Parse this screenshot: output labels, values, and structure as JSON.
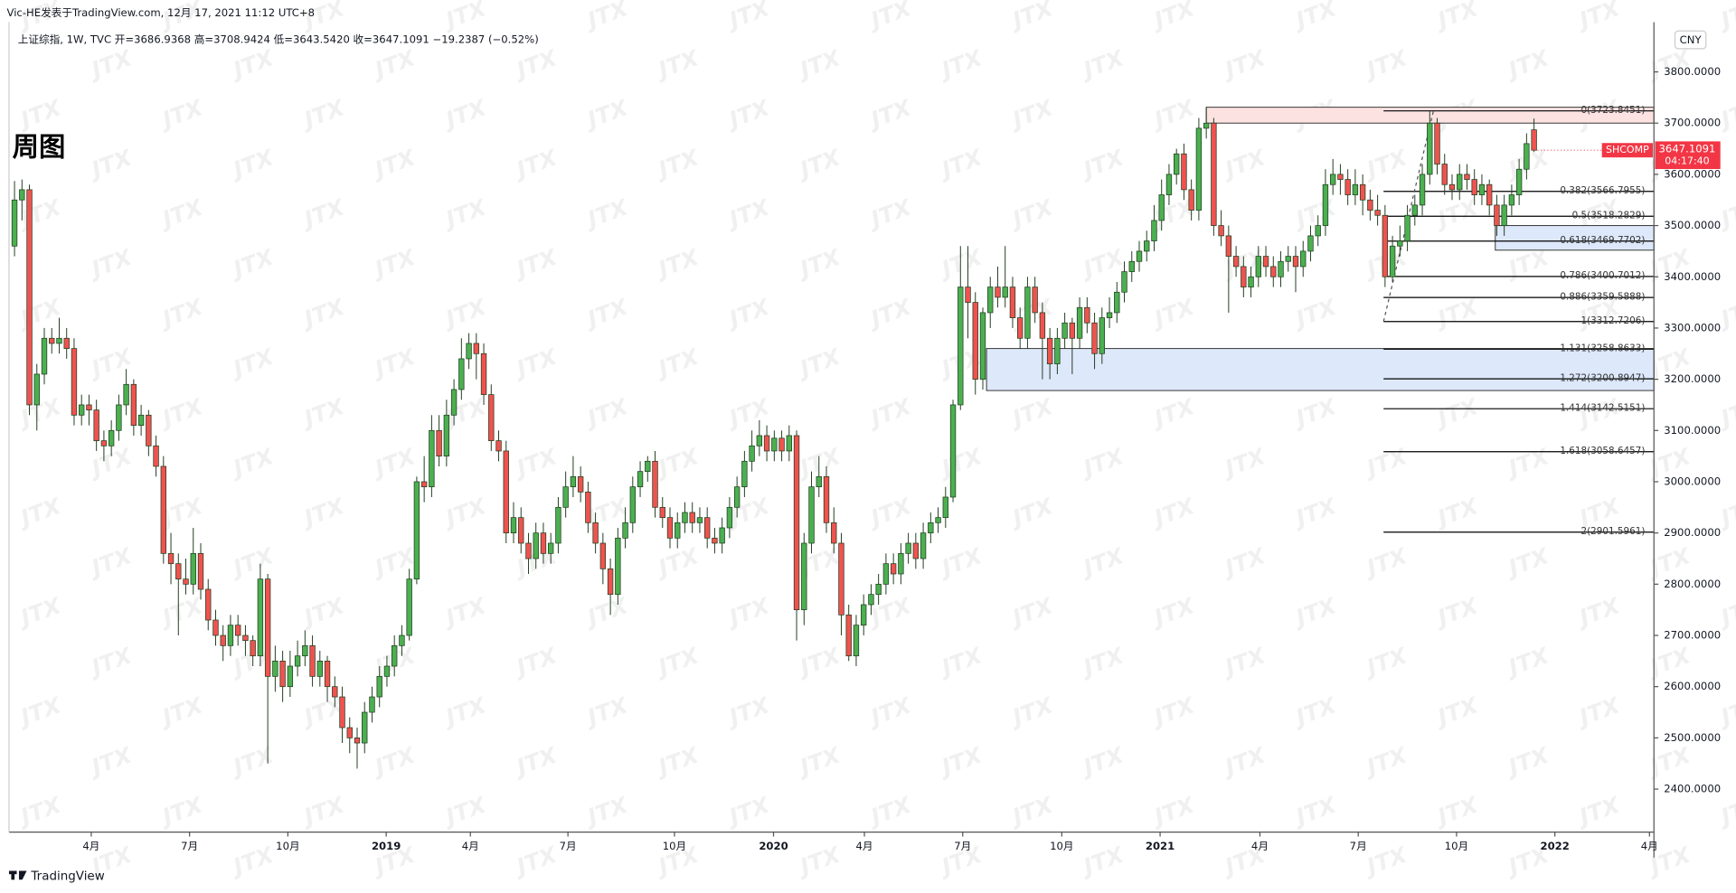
{
  "chart_data": {
    "type": "candlestick",
    "header": "Vic-HE发表于TradingView.com, 12月 17, 2021 11:12 UTC+8",
    "symbol_line": "上证综指, 1W, TVC  开=3686.9368  高=3708.9424  低=3643.5420  收=3647.1091  −19.2387 (−0.52%)",
    "title": "周图",
    "currency": "CNY",
    "footer": "TradingView",
    "watermark": "JTX",
    "up_color": "#4caf50",
    "down_color": "#ef5350",
    "border_color": "#1f3d1f",
    "xlim": [
      -0.74,
      220.1
    ],
    "ylim": [
      2316,
      3882
    ],
    "xticks": [
      {
        "value": 10.3,
        "label": "4月"
      },
      {
        "value": 23.5,
        "label": "7月"
      },
      {
        "value": 36.7,
        "label": "10月"
      },
      {
        "value": 49.9,
        "label": "2019"
      },
      {
        "value": 61.2,
        "label": "4月"
      },
      {
        "value": 74.3,
        "label": "7月"
      },
      {
        "value": 88.6,
        "label": "10月"
      },
      {
        "value": 101.9,
        "label": "2020"
      },
      {
        "value": 114.1,
        "label": "4月"
      },
      {
        "value": 127.3,
        "label": "7月"
      },
      {
        "value": 140.6,
        "label": "10月"
      },
      {
        "value": 153.8,
        "label": "2021"
      },
      {
        "value": 167.2,
        "label": "4月"
      },
      {
        "value": 180.4,
        "label": "7月"
      },
      {
        "value": 193.6,
        "label": "10月"
      },
      {
        "value": 206.8,
        "label": "2022"
      },
      {
        "value": 219.5,
        "label": "4月"
      }
    ],
    "yticks": [
      {
        "value": 2400,
        "label": "2400.0000"
      },
      {
        "value": 2500,
        "label": "2500.0000"
      },
      {
        "value": 2600,
        "label": "2600.0000"
      },
      {
        "value": 2700,
        "label": "2700.0000"
      },
      {
        "value": 2800,
        "label": "2800.0000"
      },
      {
        "value": 2900,
        "label": "2900.0000"
      },
      {
        "value": 3000,
        "label": "3000.0000"
      },
      {
        "value": 3100,
        "label": "3100.0000"
      },
      {
        "value": 3200,
        "label": "3200.0000"
      },
      {
        "value": 3300,
        "label": "3300.0000"
      },
      {
        "value": 3400,
        "label": "3400.0000"
      },
      {
        "value": 3500,
        "label": "3500.0000"
      },
      {
        "value": 3600,
        "label": "3600.0000"
      },
      {
        "value": 3700,
        "label": "3700.0000"
      },
      {
        "value": 3800,
        "label": "3800.0000"
      }
    ],
    "last_price": {
      "symbol": "SHCOMP",
      "value": 3647.1091,
      "countdown": "04:17:40",
      "color": "#f23645"
    },
    "zones": [
      {
        "start": 160,
        "from": 3700,
        "to": 3731,
        "color": "#fde2e2"
      },
      {
        "start": 130.5,
        "from": 3178,
        "to": 3260,
        "color": "#dde8fb"
      },
      {
        "start": 198.8,
        "from": 3452,
        "to": 3500,
        "color": "#dde8fb"
      }
    ],
    "trendline": {
      "x": [
        183.8,
        190.5
      ],
      "y": [
        3312.7206,
        3723.8451
      ]
    },
    "fib": {
      "start": 183.8,
      "levels": [
        {
          "value": 3723.8451,
          "label": "0(3723.8451)"
        },
        {
          "value": 3566.7955,
          "label": "0.382(3566.7955)"
        },
        {
          "value": 3518.2829,
          "label": "0.5(3518.2829)"
        },
        {
          "value": 3469.7702,
          "label": "0.618(3469.7702)"
        },
        {
          "value": 3400.7012,
          "label": "0.786(3400.7012)"
        },
        {
          "value": 3359.5888,
          "label": "0.886(3359.5888)"
        },
        {
          "value": 3312.7206,
          "label": "1(3312.7206)"
        },
        {
          "value": 3258.8633,
          "label": "1.131(3258.8633)"
        },
        {
          "value": 3200.8947,
          "label": "1.272(3200.8947)"
        },
        {
          "value": 3142.5151,
          "label": "1.414(3142.5151)"
        },
        {
          "value": 3058.6457,
          "label": "1.618(3058.6457)"
        },
        {
          "value": 2901.5961,
          "label": "2(2901.5961)"
        }
      ]
    },
    "ohlc": [
      [
        3460,
        3587,
        3440,
        3550
      ],
      [
        3550,
        3590,
        3510,
        3570
      ],
      [
        3570,
        3580,
        3130,
        3150
      ],
      [
        3150,
        3230,
        3100,
        3210
      ],
      [
        3210,
        3300,
        3190,
        3280
      ],
      [
        3280,
        3300,
        3250,
        3270
      ],
      [
        3270,
        3320,
        3250,
        3280
      ],
      [
        3280,
        3300,
        3240,
        3260
      ],
      [
        3260,
        3280,
        3110,
        3130
      ],
      [
        3130,
        3170,
        3110,
        3150
      ],
      [
        3150,
        3170,
        3110,
        3140
      ],
      [
        3140,
        3160,
        3060,
        3080
      ],
      [
        3080,
        3100,
        3040,
        3070
      ],
      [
        3070,
        3120,
        3050,
        3100
      ],
      [
        3100,
        3170,
        3080,
        3150
      ],
      [
        3150,
        3220,
        3130,
        3190
      ],
      [
        3190,
        3200,
        3090,
        3110
      ],
      [
        3110,
        3150,
        3090,
        3130
      ],
      [
        3130,
        3140,
        3050,
        3070
      ],
      [
        3070,
        3090,
        3010,
        3030
      ],
      [
        3030,
        3050,
        2840,
        2860
      ],
      [
        2860,
        2900,
        2800,
        2840
      ],
      [
        2840,
        2860,
        2700,
        2810
      ],
      [
        2810,
        2850,
        2780,
        2800
      ],
      [
        2800,
        2910,
        2780,
        2860
      ],
      [
        2860,
        2880,
        2770,
        2790
      ],
      [
        2790,
        2810,
        2710,
        2730
      ],
      [
        2730,
        2750,
        2680,
        2700
      ],
      [
        2700,
        2720,
        2650,
        2680
      ],
      [
        2680,
        2740,
        2660,
        2720
      ],
      [
        2720,
        2740,
        2680,
        2700
      ],
      [
        2700,
        2720,
        2660,
        2690
      ],
      [
        2690,
        2700,
        2640,
        2660
      ],
      [
        2660,
        2840,
        2640,
        2810
      ],
      [
        2810,
        2820,
        2450,
        2620
      ],
      [
        2620,
        2680,
        2590,
        2650
      ],
      [
        2650,
        2670,
        2570,
        2600
      ],
      [
        2600,
        2670,
        2580,
        2640
      ],
      [
        2640,
        2690,
        2620,
        2660
      ],
      [
        2660,
        2710,
        2640,
        2680
      ],
      [
        2680,
        2700,
        2600,
        2620
      ],
      [
        2620,
        2670,
        2600,
        2650
      ],
      [
        2650,
        2660,
        2570,
        2600
      ],
      [
        2600,
        2620,
        2560,
        2580
      ],
      [
        2580,
        2600,
        2490,
        2520
      ],
      [
        2520,
        2540,
        2470,
        2500
      ],
      [
        2500,
        2520,
        2440,
        2490
      ],
      [
        2490,
        2570,
        2470,
        2550
      ],
      [
        2550,
        2600,
        2530,
        2580
      ],
      [
        2580,
        2640,
        2560,
        2620
      ],
      [
        2620,
        2660,
        2600,
        2640
      ],
      [
        2640,
        2700,
        2620,
        2680
      ],
      [
        2680,
        2720,
        2660,
        2700
      ],
      [
        2700,
        2830,
        2690,
        2810
      ],
      [
        2810,
        3010,
        2800,
        3000
      ],
      [
        3000,
        3050,
        2960,
        2990
      ],
      [
        2990,
        3130,
        2970,
        3100
      ],
      [
        3100,
        3130,
        3030,
        3050
      ],
      [
        3050,
        3160,
        3030,
        3130
      ],
      [
        3130,
        3200,
        3110,
        3180
      ],
      [
        3180,
        3280,
        3160,
        3240
      ],
      [
        3240,
        3290,
        3220,
        3270
      ],
      [
        3270,
        3290,
        3200,
        3250
      ],
      [
        3250,
        3270,
        3150,
        3170
      ],
      [
        3170,
        3190,
        3060,
        3080
      ],
      [
        3080,
        3100,
        3040,
        3060
      ],
      [
        3060,
        3080,
        2880,
        2900
      ],
      [
        2900,
        2960,
        2880,
        2930
      ],
      [
        2930,
        2950,
        2860,
        2880
      ],
      [
        2880,
        2900,
        2820,
        2850
      ],
      [
        2850,
        2920,
        2830,
        2900
      ],
      [
        2900,
        2920,
        2840,
        2860
      ],
      [
        2860,
        2900,
        2840,
        2880
      ],
      [
        2880,
        2970,
        2860,
        2950
      ],
      [
        2950,
        3020,
        2930,
        2990
      ],
      [
        2990,
        3050,
        2970,
        3010
      ],
      [
        3010,
        3030,
        2960,
        2980
      ],
      [
        2980,
        3000,
        2900,
        2920
      ],
      [
        2920,
        2940,
        2860,
        2880
      ],
      [
        2880,
        2900,
        2800,
        2830
      ],
      [
        2830,
        2850,
        2740,
        2780
      ],
      [
        2780,
        2910,
        2760,
        2890
      ],
      [
        2890,
        2950,
        2870,
        2920
      ],
      [
        2920,
        3010,
        2900,
        2990
      ],
      [
        2990,
        3040,
        2970,
        3020
      ],
      [
        3020,
        3050,
        3000,
        3040
      ],
      [
        3040,
        3060,
        2930,
        2950
      ],
      [
        2950,
        2970,
        2910,
        2930
      ],
      [
        2930,
        2950,
        2870,
        2890
      ],
      [
        2890,
        2940,
        2870,
        2920
      ],
      [
        2920,
        2960,
        2900,
        2940
      ],
      [
        2940,
        2960,
        2900,
        2920
      ],
      [
        2920,
        2950,
        2900,
        2930
      ],
      [
        2930,
        2950,
        2870,
        2890
      ],
      [
        2890,
        2910,
        2860,
        2880
      ],
      [
        2880,
        2930,
        2860,
        2910
      ],
      [
        2910,
        2970,
        2890,
        2950
      ],
      [
        2950,
        3010,
        2930,
        2990
      ],
      [
        2990,
        3060,
        2970,
        3040
      ],
      [
        3040,
        3100,
        3020,
        3070
      ],
      [
        3070,
        3120,
        3050,
        3090
      ],
      [
        3090,
        3110,
        3040,
        3060
      ],
      [
        3060,
        3100,
        3040,
        3085
      ],
      [
        3085,
        3100,
        3040,
        3060
      ],
      [
        3060,
        3110,
        3040,
        3090
      ],
      [
        3090,
        3100,
        2690,
        2750
      ],
      [
        2750,
        2900,
        2720,
        2880
      ],
      [
        2880,
        3020,
        2860,
        2990
      ],
      [
        2990,
        3050,
        2970,
        3010
      ],
      [
        3010,
        3030,
        2900,
        2920
      ],
      [
        2920,
        2950,
        2860,
        2880
      ],
      [
        2880,
        2900,
        2700,
        2740
      ],
      [
        2740,
        2760,
        2650,
        2660
      ],
      [
        2660,
        2740,
        2640,
        2720
      ],
      [
        2720,
        2780,
        2700,
        2760
      ],
      [
        2760,
        2800,
        2740,
        2780
      ],
      [
        2780,
        2820,
        2760,
        2800
      ],
      [
        2800,
        2860,
        2780,
        2840
      ],
      [
        2840,
        2860,
        2800,
        2820
      ],
      [
        2820,
        2880,
        2800,
        2860
      ],
      [
        2860,
        2900,
        2840,
        2880
      ],
      [
        2880,
        2900,
        2830,
        2850
      ],
      [
        2850,
        2920,
        2830,
        2900
      ],
      [
        2900,
        2940,
        2880,
        2920
      ],
      [
        2920,
        2950,
        2900,
        2930
      ],
      [
        2930,
        2990,
        2910,
        2970
      ],
      [
        2970,
        3160,
        2960,
        3150
      ],
      [
        3150,
        3460,
        3140,
        3380
      ],
      [
        3380,
        3460,
        3280,
        3350
      ],
      [
        3350,
        3370,
        3170,
        3200
      ],
      [
        3200,
        3340,
        3180,
        3330
      ],
      [
        3330,
        3400,
        3300,
        3380
      ],
      [
        3380,
        3420,
        3340,
        3360
      ],
      [
        3360,
        3460,
        3340,
        3380
      ],
      [
        3380,
        3400,
        3300,
        3320
      ],
      [
        3320,
        3340,
        3260,
        3280
      ],
      [
        3280,
        3400,
        3260,
        3380
      ],
      [
        3380,
        3400,
        3310,
        3330
      ],
      [
        3330,
        3350,
        3200,
        3280
      ],
      [
        3280,
        3300,
        3200,
        3230
      ],
      [
        3230,
        3300,
        3210,
        3280
      ],
      [
        3280,
        3330,
        3260,
        3310
      ],
      [
        3310,
        3320,
        3210,
        3280
      ],
      [
        3280,
        3360,
        3260,
        3340
      ],
      [
        3340,
        3360,
        3290,
        3310
      ],
      [
        3310,
        3330,
        3220,
        3250
      ],
      [
        3250,
        3340,
        3230,
        3320
      ],
      [
        3320,
        3360,
        3300,
        3330
      ],
      [
        3330,
        3390,
        3310,
        3370
      ],
      [
        3370,
        3430,
        3350,
        3410
      ],
      [
        3410,
        3450,
        3390,
        3430
      ],
      [
        3430,
        3470,
        3410,
        3450
      ],
      [
        3450,
        3490,
        3430,
        3470
      ],
      [
        3470,
        3540,
        3450,
        3510
      ],
      [
        3510,
        3590,
        3490,
        3560
      ],
      [
        3560,
        3620,
        3540,
        3600
      ],
      [
        3600,
        3650,
        3580,
        3640
      ],
      [
        3640,
        3660,
        3550,
        3570
      ],
      [
        3570,
        3590,
        3510,
        3530
      ],
      [
        3530,
        3710,
        3510,
        3690
      ],
      [
        3690,
        3731,
        3670,
        3700
      ],
      [
        3700,
        3710,
        3480,
        3500
      ],
      [
        3500,
        3530,
        3460,
        3480
      ],
      [
        3480,
        3500,
        3330,
        3440
      ],
      [
        3440,
        3460,
        3400,
        3420
      ],
      [
        3420,
        3440,
        3360,
        3380
      ],
      [
        3380,
        3420,
        3360,
        3400
      ],
      [
        3400,
        3460,
        3380,
        3440
      ],
      [
        3440,
        3460,
        3400,
        3420
      ],
      [
        3420,
        3440,
        3380,
        3400
      ],
      [
        3400,
        3450,
        3380,
        3430
      ],
      [
        3430,
        3460,
        3410,
        3440
      ],
      [
        3440,
        3460,
        3370,
        3420
      ],
      [
        3420,
        3470,
        3400,
        3450
      ],
      [
        3450,
        3500,
        3430,
        3480
      ],
      [
        3480,
        3520,
        3460,
        3500
      ],
      [
        3500,
        3610,
        3480,
        3580
      ],
      [
        3580,
        3630,
        3560,
        3600
      ],
      [
        3600,
        3620,
        3560,
        3590
      ],
      [
        3590,
        3610,
        3540,
        3560
      ],
      [
        3560,
        3610,
        3540,
        3580
      ],
      [
        3580,
        3600,
        3520,
        3550
      ],
      [
        3550,
        3570,
        3510,
        3530
      ],
      [
        3530,
        3560,
        3500,
        3520
      ],
      [
        3520,
        3540,
        3380,
        3400
      ],
      [
        3400,
        3480,
        3390,
        3460
      ],
      [
        3460,
        3500,
        3440,
        3470
      ],
      [
        3470,
        3540,
        3450,
        3520
      ],
      [
        3520,
        3560,
        3500,
        3540
      ],
      [
        3540,
        3620,
        3520,
        3600
      ],
      [
        3600,
        3723,
        3580,
        3700
      ],
      [
        3700,
        3710,
        3600,
        3620
      ],
      [
        3620,
        3640,
        3560,
        3580
      ],
      [
        3580,
        3600,
        3550,
        3570
      ],
      [
        3570,
        3620,
        3550,
        3600
      ],
      [
        3600,
        3620,
        3570,
        3590
      ],
      [
        3590,
        3610,
        3540,
        3560
      ],
      [
        3560,
        3600,
        3540,
        3580
      ],
      [
        3580,
        3590,
        3520,
        3540
      ],
      [
        3540,
        3560,
        3480,
        3500
      ],
      [
        3500,
        3560,
        3480,
        3540
      ],
      [
        3540,
        3580,
        3520,
        3560
      ],
      [
        3560,
        3630,
        3540,
        3610
      ],
      [
        3610,
        3680,
        3590,
        3660
      ],
      [
        3686.9368,
        3708.9424,
        3643.542,
        3647.1091
      ]
    ]
  }
}
